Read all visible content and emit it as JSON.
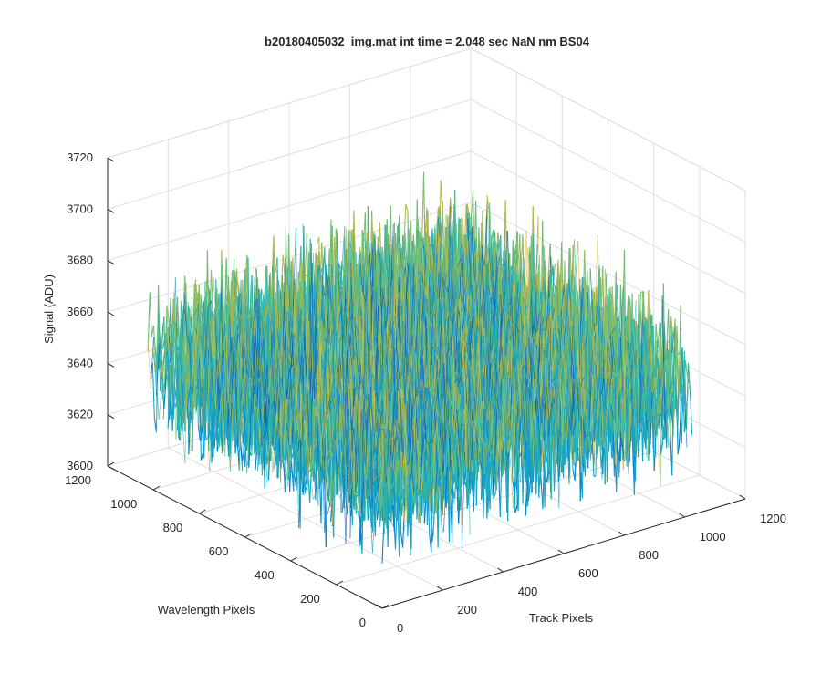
{
  "figure": {
    "background": "#ffffff"
  },
  "chart_data": {
    "type": "surface",
    "title": "b20180405032_img.mat int time = 2.048 sec  NaN nm BS04",
    "xlabel": "Track Pixels",
    "ylabel": "Wavelength Pixels",
    "zlabel": "Signal (ADU)",
    "xlim": [
      0,
      1200
    ],
    "ylim": [
      0,
      1200
    ],
    "zlim": [
      3600,
      3720
    ],
    "x_ticks": [
      0,
      200,
      400,
      600,
      800,
      1000,
      1200
    ],
    "y_ticks": [
      0,
      200,
      400,
      600,
      800,
      1000,
      1200
    ],
    "z_ticks": [
      3600,
      3620,
      3640,
      3660,
      3680,
      3700,
      3720
    ],
    "x_tick_labels": [
      "0",
      "200",
      "400",
      "600",
      "800",
      "1000",
      "1200"
    ],
    "y_tick_labels": [
      "0",
      "200",
      "400",
      "600",
      "800",
      "1000",
      "1200"
    ],
    "z_tick_labels": [
      "3600",
      "3620",
      "3640",
      "3660",
      "3680",
      "3700",
      "3720"
    ],
    "data_extent": {
      "x": [
        0,
        1024
      ],
      "y": [
        0,
        1024
      ]
    },
    "signal_mean": 3650,
    "signal_noise_range": [
      3610,
      3700
    ],
    "grid": true,
    "box": "3d",
    "colormap": [
      "#0055c8",
      "#0a82cf",
      "#15a3c6",
      "#2db6a4",
      "#70bd7a",
      "#b9b847",
      "#e0c23a"
    ]
  }
}
